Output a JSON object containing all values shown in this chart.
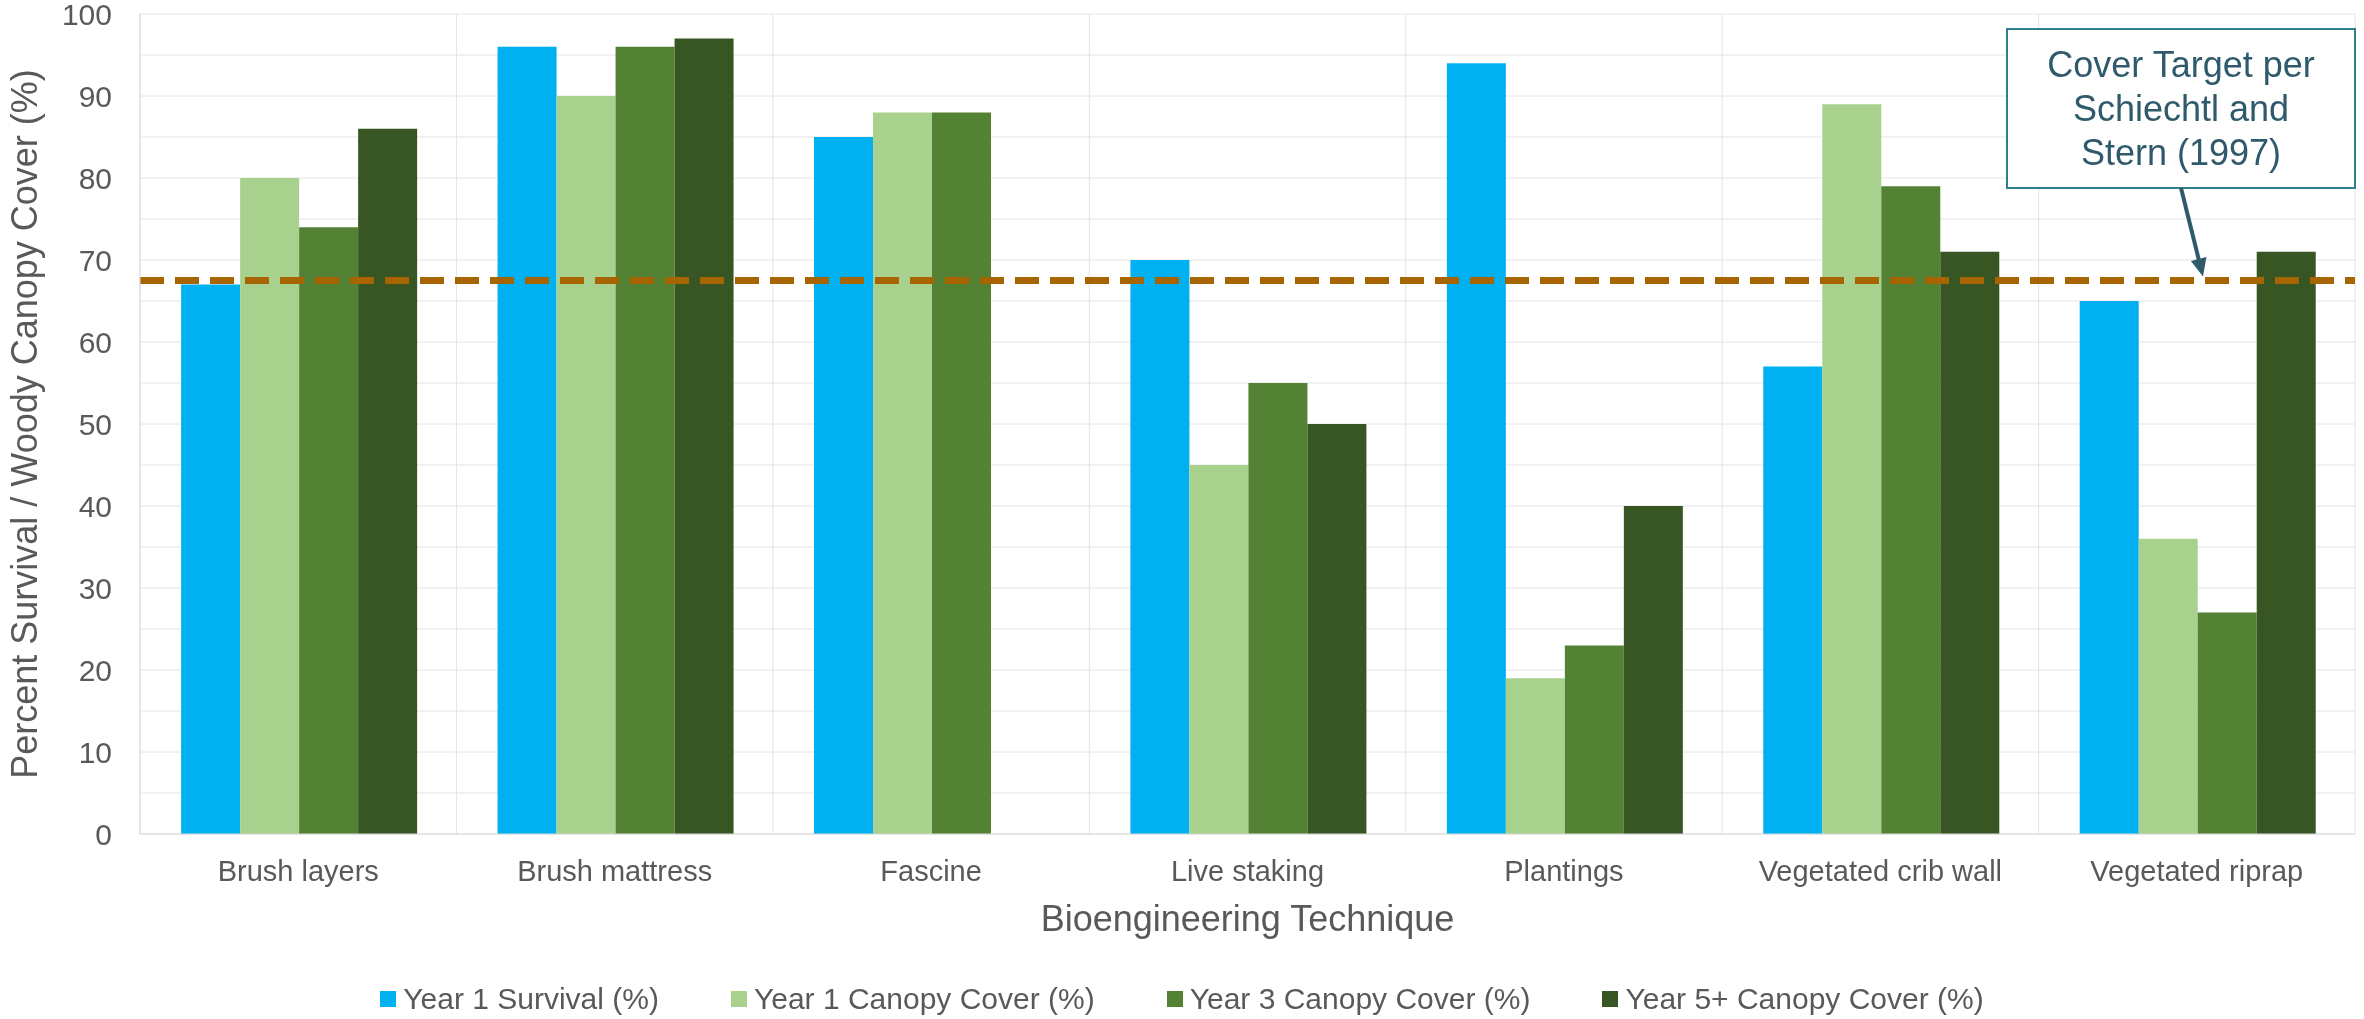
{
  "chart_data": {
    "type": "bar",
    "xlabel": "Bioengineering Technique",
    "ylabel": "Percent Survival / Woody Canopy Cover (%)",
    "categories": [
      "Brush layers",
      "Brush mattress",
      "Fascine",
      "Live staking",
      "Plantings",
      "Vegetated crib wall",
      "Vegetated riprap"
    ],
    "series": [
      {
        "name": "Year 1 Survival (%)",
        "color": "#00b0f0",
        "values": [
          67,
          96,
          85,
          70,
          94,
          57,
          65
        ]
      },
      {
        "name": "Year 1 Canopy Cover (%)",
        "color": "#a9d18e",
        "values": [
          80,
          90,
          88,
          45,
          19,
          89,
          36
        ]
      },
      {
        "name": "Year 3 Canopy Cover (%)",
        "color": "#548235",
        "values": [
          74,
          96,
          88,
          55,
          23,
          79,
          27
        ]
      },
      {
        "name": "Year 5+ Canopy Cover (%)",
        "color": "#375623",
        "values": [
          86,
          97,
          null,
          50,
          40,
          71,
          71
        ]
      }
    ],
    "ylim": [
      0,
      100
    ],
    "yticks": [
      0,
      {
        "value": 5,
        "label": null
      },
      10,
      {
        "value": 15,
        "label": null
      },
      20,
      {
        "value": 25,
        "label": null
      },
      30,
      {
        "value": 35,
        "label": null
      },
      40,
      {
        "value": 45,
        "label": null
      },
      50,
      {
        "value": 55,
        "label": null
      },
      60,
      {
        "value": 65,
        "label": null
      },
      70,
      {
        "value": 75,
        "label": null
      },
      80,
      {
        "value": 85,
        "label": null
      },
      90,
      {
        "value": 95,
        "label": null
      },
      100
    ],
    "grid": true,
    "legend": "bottom",
    "ref_lines": [
      {
        "axis": "y",
        "value": 67.5,
        "label": "Cover Target per Schiechtl and Stern (1997)",
        "color": "#a66500",
        "line_style": "dashed"
      }
    ]
  }
}
